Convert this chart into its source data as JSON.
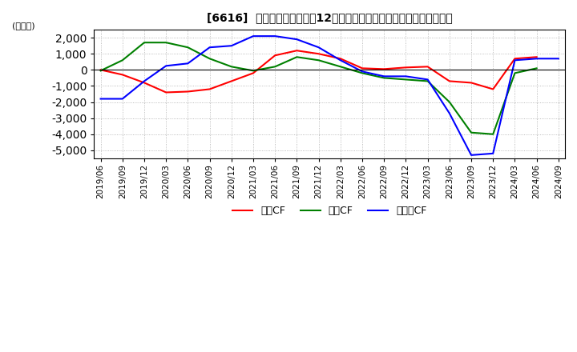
{
  "title": "[6616]  キャッシュフローの12か月移動合計の対前年同期増減額の推移",
  "ylabel": "(百万円)",
  "ylim": [
    -5500,
    2500
  ],
  "yticks": [
    2000,
    1000,
    0,
    -1000,
    -2000,
    -3000,
    -4000,
    -5000
  ],
  "legend": [
    "営業CF",
    "投資CF",
    "フリーCF"
  ],
  "colors": [
    "#ff0000",
    "#008000",
    "#0000ff"
  ],
  "x_labels": [
    "2019/06",
    "2019/09",
    "2019/12",
    "2020/03",
    "2020/06",
    "2020/09",
    "2020/12",
    "2021/03",
    "2021/06",
    "2021/09",
    "2021/12",
    "2022/03",
    "2022/06",
    "2022/09",
    "2022/12",
    "2023/03",
    "2023/06",
    "2023/09",
    "2023/12",
    "2024/03",
    "2024/06",
    "2024/09"
  ],
  "営業CF": [
    0,
    -300,
    -800,
    -1400,
    -1350,
    -1200,
    -700,
    -200,
    900,
    1200,
    1000,
    700,
    100,
    50,
    150,
    200,
    -700,
    -800,
    -1200,
    700,
    800,
    null
  ],
  "投資CF": [
    -50,
    600,
    1700,
    1700,
    1400,
    700,
    200,
    -50,
    200,
    800,
    600,
    200,
    -200,
    -500,
    -600,
    -700,
    -2000,
    -3900,
    -4000,
    -200,
    100,
    null
  ],
  "フリーCF": [
    -1800,
    -1800,
    -700,
    250,
    400,
    1400,
    1500,
    2100,
    2100,
    1900,
    1400,
    600,
    -100,
    -400,
    -400,
    -600,
    -2700,
    -5300,
    -5200,
    600,
    700,
    700
  ]
}
